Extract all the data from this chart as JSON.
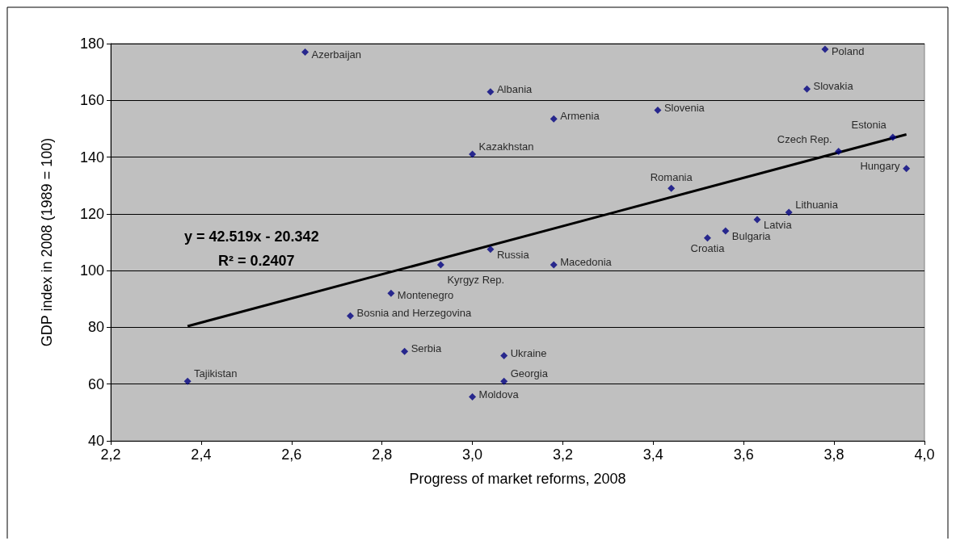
{
  "chart_data": {
    "type": "scatter",
    "xlabel": "Progress of market reforms, 2008",
    "ylabel": "GDP index in 2008 (1989 = 100)",
    "xlim": [
      2.2,
      4.0
    ],
    "xticks": [
      {
        "value": 2.2,
        "label": "2,2"
      },
      {
        "value": 2.4,
        "label": "2,4"
      },
      {
        "value": 2.6,
        "label": "2,6"
      },
      {
        "value": 2.8,
        "label": "2,8"
      },
      {
        "value": 3.0,
        "label": "3,0"
      },
      {
        "value": 3.2,
        "label": "3,2"
      },
      {
        "value": 3.4,
        "label": "3,4"
      },
      {
        "value": 3.6,
        "label": "3,6"
      },
      {
        "value": 3.8,
        "label": "3,8"
      },
      {
        "value": 4.0,
        "label": "4,0"
      }
    ],
    "ylim": [
      40,
      180
    ],
    "yticks": [
      40,
      60,
      80,
      100,
      120,
      140,
      160,
      180
    ],
    "grid": "y",
    "marker": "diamond",
    "series": [
      {
        "color": "#000080",
        "x": [
          2.63,
          3.78,
          3.04,
          3.74,
          3.18,
          3.41,
          3.0,
          3.81,
          3.93,
          3.96,
          3.44,
          3.7,
          3.63,
          3.56,
          3.52,
          3.04,
          2.93,
          3.18,
          2.82,
          2.73,
          2.85,
          3.07,
          3.07,
          2.37,
          3.0
        ],
        "values": [
          177,
          178,
          163,
          164,
          153.5,
          156.5,
          141,
          142,
          147,
          136,
          129,
          120.5,
          118,
          114,
          111.5,
          107.5,
          102,
          102,
          92,
          84,
          71.5,
          70,
          61,
          61,
          55.5
        ]
      },
      {
        "type": "line",
        "color": "#000000",
        "marker": "none",
        "x": [
          2.37,
          3.96
        ],
        "values": [
          80.4,
          148.0
        ]
      }
    ],
    "annotations": [
      "y = 42.519x - 20.342",
      "R² = 0.2407",
      {
        "text": "Azerbaijan",
        "x": 2.63,
        "y": 177
      },
      {
        "text": "Poland",
        "x": 3.78,
        "y": 178
      },
      {
        "text": "Albania",
        "x": 3.04,
        "y": 163
      },
      {
        "text": "Slovakia",
        "x": 3.74,
        "y": 164
      },
      {
        "text": "Armenia",
        "x": 3.18,
        "y": 153.5
      },
      {
        "text": "Slovenia",
        "x": 3.41,
        "y": 156.5
      },
      {
        "text": "Kazakhstan",
        "x": 3.0,
        "y": 141
      },
      {
        "text": "Czech Rep.",
        "x": 3.81,
        "y": 142
      },
      {
        "text": "Estonia",
        "x": 3.93,
        "y": 147
      },
      {
        "text": "Hungary",
        "x": 3.96,
        "y": 136
      },
      {
        "text": "Romania",
        "x": 3.44,
        "y": 129
      },
      {
        "text": "Lithuania",
        "x": 3.7,
        "y": 120.5
      },
      {
        "text": "Latvia",
        "x": 3.63,
        "y": 118
      },
      {
        "text": "Bulgaria",
        "x": 3.56,
        "y": 114
      },
      {
        "text": "Croatia",
        "x": 3.52,
        "y": 111.5
      },
      {
        "text": "Russia",
        "x": 3.04,
        "y": 107.5
      },
      {
        "text": "Kyrgyz Rep.",
        "x": 2.93,
        "y": 102
      },
      {
        "text": "Macedonia",
        "x": 3.18,
        "y": 102
      },
      {
        "text": "Montenegro",
        "x": 2.82,
        "y": 92
      },
      {
        "text": "Bosnia and Herzegovina",
        "x": 2.73,
        "y": 84
      },
      {
        "text": "Serbia",
        "x": 2.85,
        "y": 71.5
      },
      {
        "text": "Ukraine",
        "x": 3.07,
        "y": 70
      },
      {
        "text": "Georgia",
        "x": 3.07,
        "y": 61
      },
      {
        "text": "Tajikistan",
        "x": 2.37,
        "y": 61
      },
      {
        "text": "Moldova",
        "x": 3.0,
        "y": 55.5
      }
    ]
  }
}
